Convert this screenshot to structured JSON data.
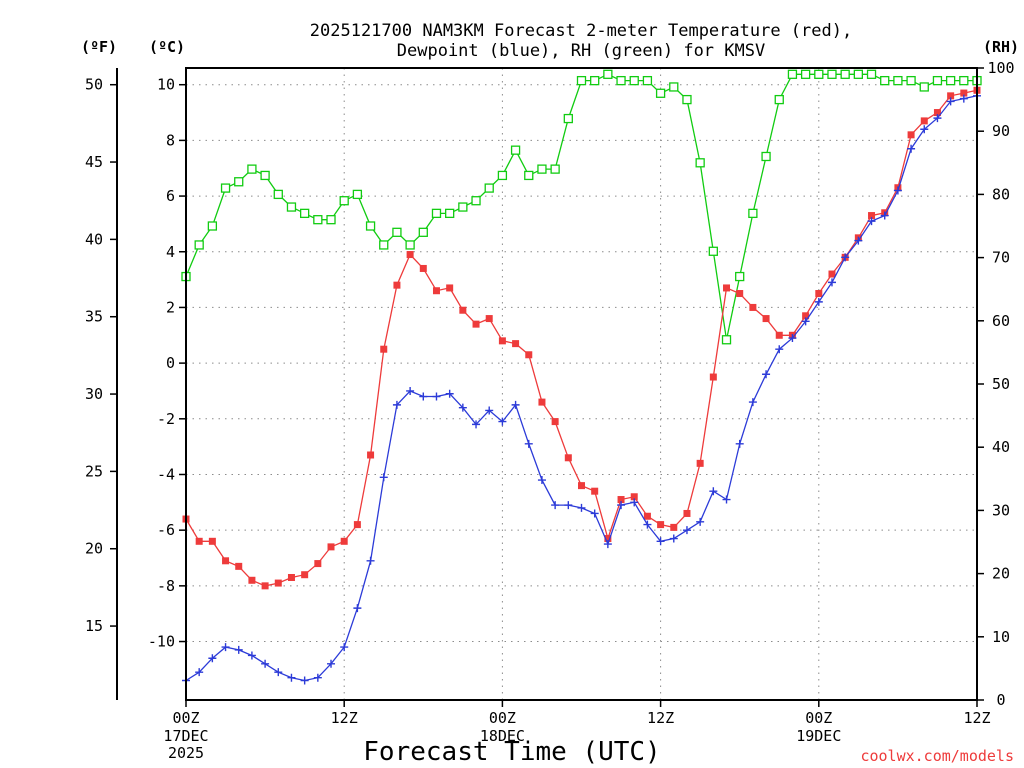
{
  "chart_data": {
    "type": "line",
    "title_line1": "2025121700 NAM3KM Forecast 2-meter Temperature (red),",
    "title_line2": "Dewpoint (blue), RH (green) for KMSV",
    "xlabel": "Forecast Time (UTC)",
    "credit": "coolwx.com/models",
    "units": {
      "left_outer": "(ºF)",
      "left_inner": "(ºC)",
      "right": "(RH)"
    },
    "x_ticks": [
      {
        "h": 0,
        "time": "00Z",
        "date": "17DEC",
        "year": "2025"
      },
      {
        "h": 12,
        "time": "12Z",
        "date": "",
        "year": ""
      },
      {
        "h": 24,
        "time": "00Z",
        "date": "18DEC",
        "year": ""
      },
      {
        "h": 36,
        "time": "12Z",
        "date": "",
        "year": ""
      },
      {
        "h": 48,
        "time": "00Z",
        "date": "19DEC",
        "year": ""
      },
      {
        "h": 60,
        "time": "12Z",
        "date": "",
        "year": ""
      }
    ],
    "xlim": [
      0,
      60
    ],
    "celsius_ylim": [
      -12.1,
      10.6
    ],
    "celsius_ticks": [
      -10,
      -8,
      -6,
      -4,
      -2,
      0,
      2,
      4,
      6,
      8,
      10
    ],
    "fahrenheit_ticks": [
      15,
      20,
      25,
      30,
      35,
      40,
      45,
      50
    ],
    "rh_ylim": [
      0,
      100
    ],
    "rh_ticks": [
      0,
      10,
      20,
      30,
      40,
      50,
      60,
      70,
      80,
      90,
      100
    ],
    "hours": [
      0,
      1,
      2,
      3,
      4,
      5,
      6,
      7,
      8,
      9,
      10,
      11,
      12,
      13,
      14,
      15,
      16,
      17,
      18,
      19,
      20,
      21,
      22,
      23,
      24,
      25,
      26,
      27,
      28,
      29,
      30,
      31,
      32,
      33,
      34,
      35,
      36,
      37,
      38,
      39,
      40,
      41,
      42,
      43,
      44,
      45,
      46,
      47,
      48,
      49,
      50,
      51,
      52,
      53,
      54,
      55,
      56,
      57,
      58,
      59,
      60
    ],
    "series": [
      {
        "name": "2-meter Temperature",
        "color": "#ee3b3b",
        "marker": "filled-square",
        "axis": "celsius",
        "values": [
          -5.6,
          -6.4,
          -6.4,
          -7.1,
          -7.3,
          -7.8,
          -8.0,
          -7.9,
          -7.7,
          -7.6,
          -7.2,
          -6.6,
          -6.4,
          -5.8,
          -3.3,
          0.5,
          2.8,
          3.9,
          3.4,
          2.6,
          2.7,
          1.9,
          1.4,
          1.6,
          0.8,
          0.7,
          0.3,
          -1.4,
          -2.1,
          -3.4,
          -4.4,
          -4.6,
          -6.3,
          -4.9,
          -4.8,
          -5.5,
          -5.8,
          -5.9,
          -5.4,
          -3.6,
          -0.5,
          2.7,
          2.5,
          2.0,
          1.6,
          1.0,
          1.0,
          1.7,
          2.5,
          3.2,
          3.8,
          4.5,
          5.3,
          5.4,
          6.3,
          8.2,
          8.7,
          9.0,
          9.6,
          9.7,
          9.8
        ]
      },
      {
        "name": "Dewpoint",
        "color": "#2c3bd8",
        "marker": "plus",
        "axis": "celsius",
        "values": [
          -11.4,
          -11.1,
          -10.6,
          -10.2,
          -10.3,
          -10.5,
          -10.8,
          -11.1,
          -11.3,
          -11.4,
          -11.3,
          -10.8,
          -10.2,
          -8.8,
          -7.1,
          -4.1,
          -1.5,
          -1.0,
          -1.2,
          -1.2,
          -1.1,
          -1.6,
          -2.2,
          -1.7,
          -2.1,
          -1.5,
          -2.9,
          -4.2,
          -5.1,
          -5.1,
          -5.2,
          -5.4,
          -6.5,
          -5.1,
          -5.0,
          -5.8,
          -6.4,
          -6.3,
          -6.0,
          -5.7,
          -4.6,
          -4.9,
          -2.9,
          -1.4,
          -0.4,
          0.5,
          0.9,
          1.5,
          2.2,
          2.9,
          3.8,
          4.4,
          5.1,
          5.3,
          6.2,
          7.7,
          8.4,
          8.8,
          9.4,
          9.5,
          9.6
        ]
      },
      {
        "name": "RH",
        "color": "#11cc11",
        "marker": "open-square",
        "axis": "rh",
        "values": [
          67,
          72,
          75,
          81,
          82,
          84,
          83,
          80,
          78,
          77,
          76,
          76,
          79,
          80,
          75,
          72,
          74,
          72,
          74,
          77,
          77,
          78,
          79,
          81,
          83,
          87,
          83,
          84,
          84,
          92,
          98,
          98,
          99,
          98,
          98,
          98,
          96,
          97,
          95,
          85,
          71,
          57,
          67,
          77,
          86,
          95,
          99,
          99,
          99,
          99,
          99,
          99,
          99,
          98,
          98,
          98,
          97,
          98,
          98,
          98,
          98
        ]
      }
    ]
  }
}
